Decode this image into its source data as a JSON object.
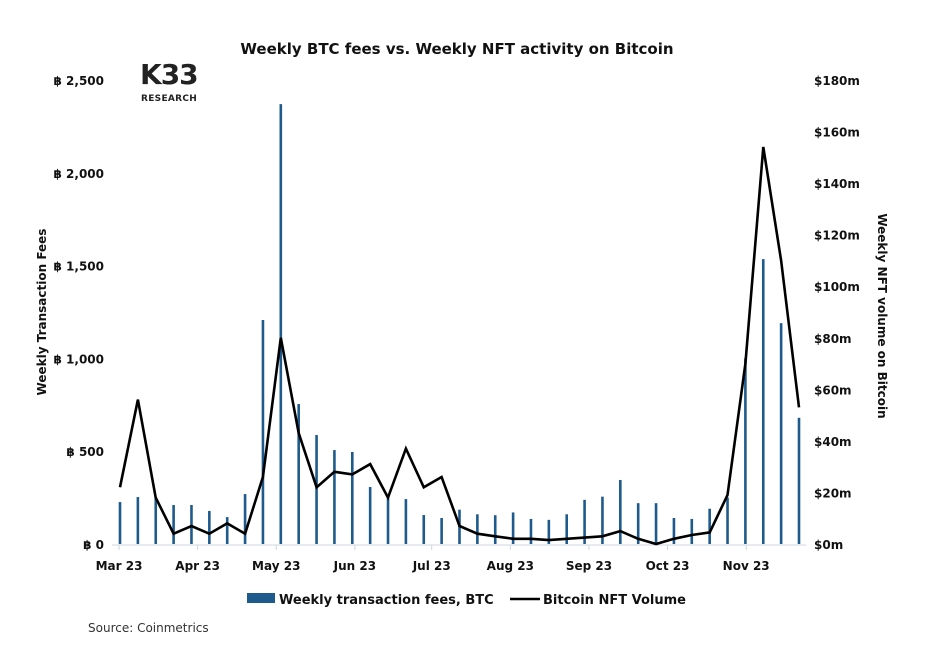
{
  "chart_data": {
    "type": "bar+line",
    "title": "Weekly BTC fees vs. Weekly NFT activity on Bitcoin",
    "ylabel_left": "Weekly Transaction Fees",
    "ylabel_right": "Weekly NFT volume on Bitcoin",
    "ylim_left": [
      0,
      2500
    ],
    "ylim_right": [
      0,
      180
    ],
    "left_ticks": [
      "฿ 0",
      "฿ 500",
      "฿ 1,000",
      "฿ 1,500",
      "฿ 2,000",
      "฿ 2,500"
    ],
    "left_tick_values": [
      0,
      500,
      1000,
      1500,
      2000,
      2500
    ],
    "right_ticks": [
      "$0m",
      "$20m",
      "$40m",
      "$60m",
      "$80m",
      "$100m",
      "$120m",
      "$140m",
      "$160m",
      "$180m"
    ],
    "right_tick_values": [
      0,
      20,
      40,
      60,
      80,
      100,
      120,
      140,
      160,
      180
    ],
    "x_ticks": [
      "Mar 23",
      "Apr 23",
      "May 23",
      "Jun 23",
      "Jul 23",
      "Aug 23",
      "Sep 23",
      "Oct 23",
      "Nov 23"
    ],
    "x_tick_week_index": [
      0,
      4.4,
      8.8,
      13.2,
      17.5,
      21.9,
      26.3,
      30.7,
      35.1
    ],
    "grid": false,
    "legend_position": "bottom-center",
    "series": [
      {
        "name": "Weekly transaction fees, BTC",
        "type": "bar",
        "axis": "left",
        "color": "#1f5a8c",
        "values": [
          226,
          253,
          250,
          210,
          210,
          178,
          145,
          269,
          1207,
          2370,
          754,
          587,
          506,
          496,
          307,
          264,
          242,
          156,
          140,
          185,
          160,
          155,
          170,
          135,
          130,
          160,
          238,
          255,
          345,
          220,
          220,
          140,
          135,
          190,
          250,
          1000,
          1535,
          1190,
          680
        ]
      },
      {
        "name": "Bitcoin NFT Volume",
        "type": "line",
        "axis": "right",
        "color": "#000000",
        "values": [
          22,
          56,
          18,
          4,
          7,
          4,
          8,
          4,
          26,
          80,
          43,
          22,
          28,
          27,
          31,
          18,
          37,
          22,
          26,
          7,
          4,
          3,
          2,
          2,
          1.5,
          2,
          2.5,
          3,
          5,
          2,
          0,
          2,
          3.5,
          4.5,
          19,
          70,
          154,
          110,
          53
        ]
      }
    ]
  },
  "logo": {
    "big": "K33",
    "small": "RESEARCH"
  },
  "source": "Source: Coinmetrics"
}
